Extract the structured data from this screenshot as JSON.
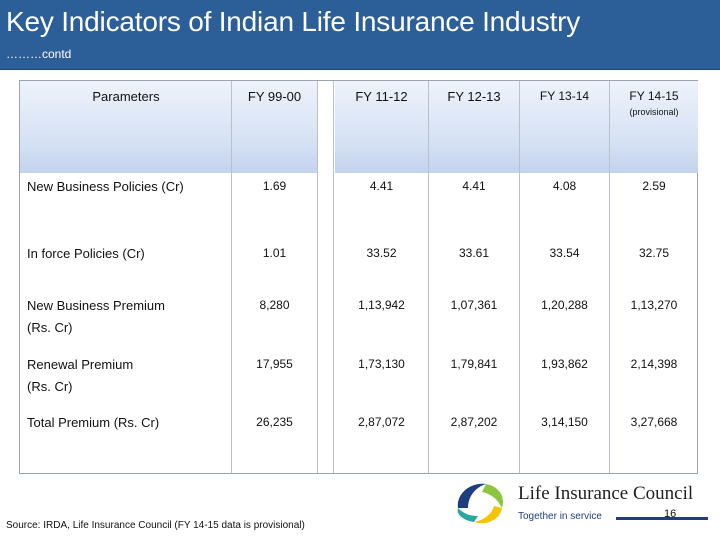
{
  "header": {
    "title": "Key Indicators of Indian Life Insurance Industry",
    "subtitle": "………contd"
  },
  "table": {
    "columns": [
      "Parameters",
      "FY 99-00",
      "FY 11-12",
      "FY 12-13",
      "FY 13-14",
      "FY 14-15"
    ],
    "provisional_note": "(provisional)",
    "rows": [
      {
        "label": "New Business Policies (Cr)",
        "label_line2": "",
        "values": [
          "1.69",
          "4.41",
          "4.41",
          "4.08",
          "2.59"
        ]
      },
      {
        "label": "In force Policies (Cr)",
        "label_line2": "",
        "values": [
          "1.01",
          "33.52",
          "33.61",
          "33.54",
          "32.75"
        ]
      },
      {
        "label": "New Business Premium",
        "label_line2": "(Rs. Cr)",
        "values": [
          "8,280",
          "1,13,942",
          "1,07,361",
          "1,20,288",
          "1,13,270"
        ]
      },
      {
        "label": "Renewal Premium",
        "label_line2": "(Rs. Cr)",
        "values": [
          "17,955",
          "1,73,130",
          "1,79,841",
          "1,93,862",
          "2,14,398"
        ]
      },
      {
        "label": "Total Premium (Rs. Cr)",
        "label_line2": "",
        "values": [
          "26,235",
          "2,87,072",
          "2,87,202",
          "3,14,150",
          "3,27,668"
        ]
      }
    ]
  },
  "footer": {
    "source": "Source: IRDA, Life Insurance Council (FY 14-15 data is provisional)",
    "logo_name": "Life Insurance Council",
    "logo_tagline": "Together in service",
    "page_number": "16"
  },
  "colors": {
    "header_bg": "#2c5f97",
    "table_header_band": "#c3d3ee",
    "logo_blue": "#1f3e80",
    "logo_green": "#8cc63f",
    "logo_yellow": "#f5c400",
    "logo_teal": "#2aa6a0"
  },
  "icons": [
    "council-swirl-logo-icon"
  ]
}
